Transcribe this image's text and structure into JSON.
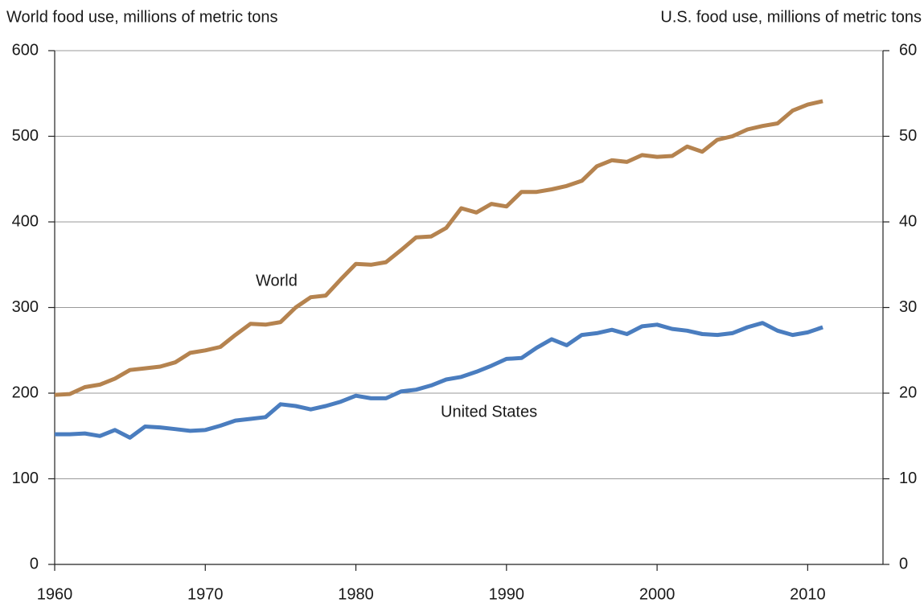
{
  "chart_data": {
    "type": "line",
    "y_label": "World food use, millions of metric tons",
    "y2_label": "U.S. food use, millions of metric tons",
    "annotations": [
      "World",
      "United States"
    ],
    "x": [
      1960,
      1961,
      1962,
      1963,
      1964,
      1965,
      1966,
      1967,
      1968,
      1969,
      1970,
      1971,
      1972,
      1973,
      1974,
      1975,
      1976,
      1977,
      1978,
      1979,
      1980,
      1981,
      1982,
      1983,
      1984,
      1985,
      1986,
      1987,
      1988,
      1989,
      1990,
      1991,
      1992,
      1993,
      1994,
      1995,
      1996,
      1997,
      1998,
      1999,
      2000,
      2001,
      2002,
      2003,
      2004,
      2005,
      2006,
      2007,
      2008,
      2009,
      2010,
      2011
    ],
    "series": [
      {
        "name": "World",
        "color": "#b5834f",
        "values": [
          198,
          199,
          207,
          210,
          217,
          227,
          229,
          231,
          236,
          247,
          250,
          254,
          268,
          281,
          280,
          283,
          300,
          312,
          314,
          333,
          351,
          350,
          353,
          367,
          382,
          383,
          393,
          416,
          411,
          421,
          418,
          435,
          435,
          438,
          442,
          448,
          465,
          472,
          470,
          478,
          476,
          477,
          488,
          482,
          496,
          500,
          508,
          512,
          515,
          530,
          537,
          541
        ]
      },
      {
        "name": "United States",
        "color": "#4a7dbf",
        "axis": "y2",
        "values": [
          15.2,
          15.2,
          15.3,
          15.0,
          15.7,
          14.8,
          16.1,
          16.0,
          15.8,
          15.6,
          15.7,
          16.2,
          16.8,
          17.0,
          17.2,
          18.7,
          18.5,
          18.1,
          18.5,
          19.0,
          19.7,
          19.4,
          19.4,
          20.2,
          20.4,
          20.9,
          21.6,
          21.9,
          22.5,
          23.2,
          24.0,
          24.1,
          25.3,
          26.3,
          25.6,
          26.8,
          27.0,
          27.4,
          26.9,
          27.8,
          28.0,
          27.5,
          27.3,
          26.9,
          26.8,
          27.0,
          27.7,
          28.2,
          27.3,
          26.8,
          27.1,
          27.7
        ]
      }
    ],
    "xlim": [
      1960,
      2015
    ],
    "xticks": [
      1960,
      1970,
      1980,
      1990,
      2000,
      2010
    ],
    "ylim": [
      0,
      600
    ],
    "yticks": [
      0,
      100,
      200,
      300,
      400,
      500,
      600
    ],
    "y2lim": [
      0,
      60
    ],
    "y2ticks": [
      0,
      10,
      20,
      30,
      40,
      50,
      60
    ],
    "grid": true
  }
}
